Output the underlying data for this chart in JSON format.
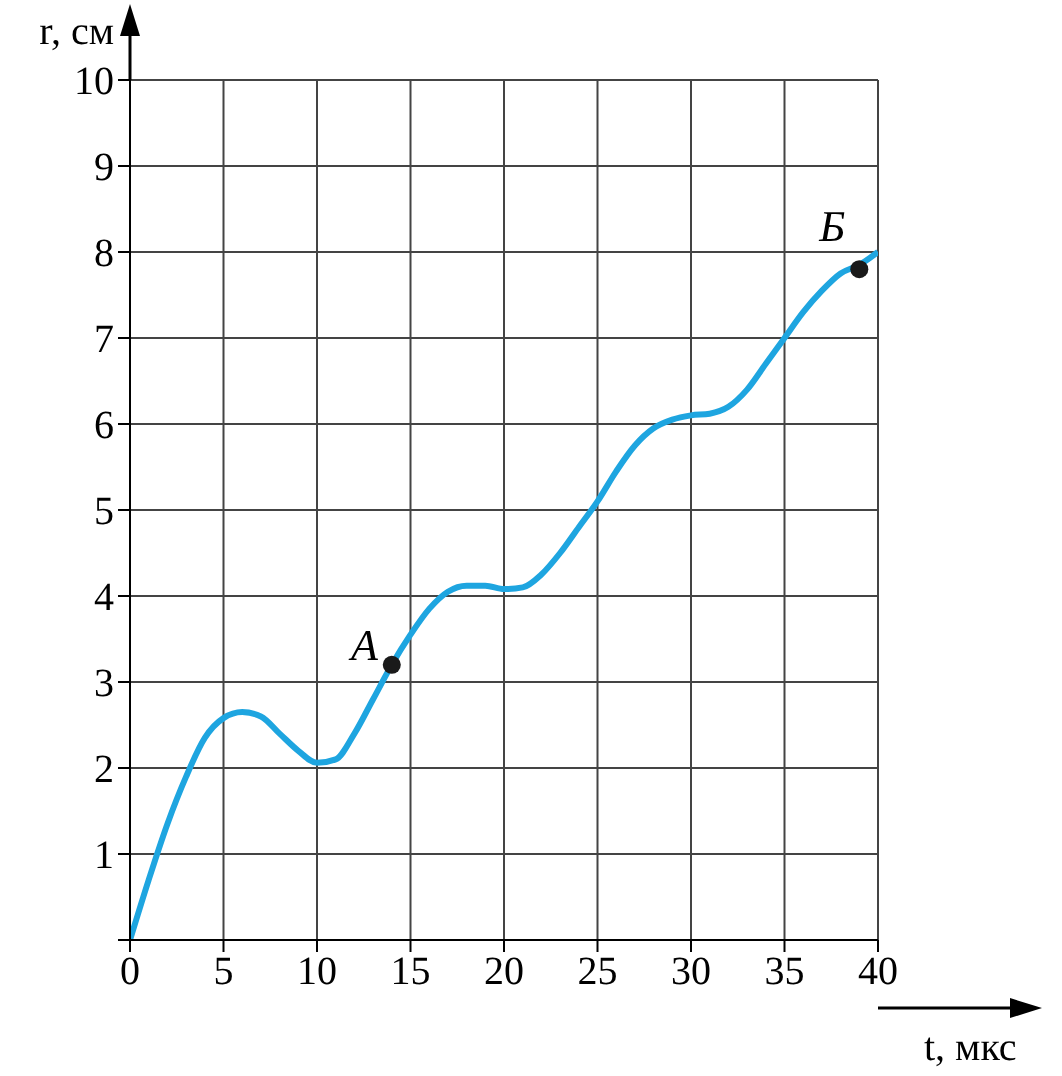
{
  "chart_data": {
    "type": "line",
    "xlabel": "t, мкс",
    "ylabel": "r, см",
    "xlim": [
      0,
      40
    ],
    "ylim": [
      0,
      10
    ],
    "xticks": [
      0,
      5,
      10,
      15,
      20,
      25,
      30,
      35,
      40
    ],
    "yticks": [
      {
        "value": 0,
        "label": null
      },
      1,
      2,
      3,
      4,
      5,
      6,
      7,
      8,
      9,
      10
    ],
    "grid": true,
    "series": [
      {
        "color": "#1ea5e0",
        "marker": "none",
        "x": [
          0,
          1,
          2,
          3,
          4,
          5,
          6,
          7,
          8,
          9,
          10,
          11,
          12,
          13,
          14,
          15,
          16,
          17,
          18,
          19,
          20,
          21,
          22,
          23,
          24,
          25,
          26,
          27,
          28,
          29,
          30,
          31,
          32,
          33,
          34,
          35,
          36,
          37,
          38,
          39,
          40
        ],
        "values": [
          0,
          0.7,
          1.35,
          1.9,
          2.35,
          2.58,
          2.65,
          2.6,
          2.4,
          2.2,
          2.06,
          2.1,
          2.4,
          2.8,
          3.2,
          3.55,
          3.85,
          4.05,
          4.12,
          4.12,
          4.08,
          4.1,
          4.25,
          4.5,
          4.8,
          5.1,
          5.45,
          5.75,
          5.95,
          6.05,
          6.1,
          6.12,
          6.2,
          6.4,
          6.7,
          7.0,
          7.3,
          7.55,
          7.75,
          7.85,
          8.0
        ]
      },
      {
        "type": "scatter",
        "color": "#1a1a1a",
        "marker": "circle",
        "x": [
          14,
          39
        ],
        "values": [
          3.2,
          7.8
        ]
      }
    ],
    "annotations": [
      {
        "text": "А",
        "x": 14,
        "y": 3.2
      },
      {
        "text": "Б",
        "x": 39,
        "y": 7.8
      }
    ]
  }
}
